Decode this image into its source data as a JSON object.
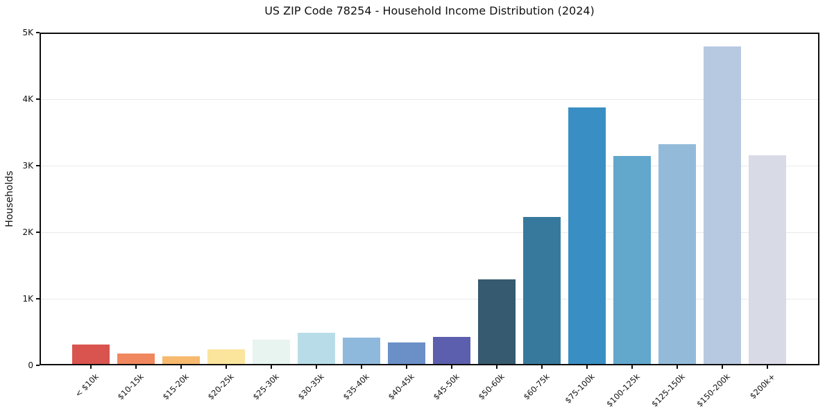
{
  "chart_data": {
    "type": "bar",
    "title": "US ZIP Code 78254 - Household Income Distribution (2024)",
    "xlabel": "",
    "ylabel": "Households",
    "ylim": [
      0,
      5000
    ],
    "grid": "horizontal",
    "legend": "none",
    "yticks": [
      {
        "value": 0,
        "label": "0"
      },
      {
        "value": 1000,
        "label": "1K"
      },
      {
        "value": 2000,
        "label": "2K"
      },
      {
        "value": 3000,
        "label": "3K"
      },
      {
        "value": 4000,
        "label": "4K"
      },
      {
        "value": 5000,
        "label": "5K"
      }
    ],
    "categories": [
      "< $10k",
      "$10-15k",
      "$15-20k",
      "$20-25k",
      "$25-30k",
      "$30-35k",
      "$35-40k",
      "$40-45k",
      "$45-50k",
      "$50-60k",
      "$60-75k",
      "$75-100k",
      "$100-125k",
      "$125-150k",
      "$150-200k",
      "$200k+"
    ],
    "values": [
      310,
      180,
      135,
      235,
      390,
      490,
      415,
      340,
      425,
      1290,
      2230,
      3880,
      3150,
      3320,
      4790,
      3160
    ],
    "bar_colors": [
      "#d9544f",
      "#f0875e",
      "#f7b96e",
      "#fbe49c",
      "#e7f4f0",
      "#b9dde8",
      "#8fb9dc",
      "#6b90c8",
      "#5c5fad",
      "#365a70",
      "#37799c",
      "#398fc4",
      "#62a7cc",
      "#93bbd9",
      "#b7c8e1",
      "#d8dae6"
    ],
    "colors": {
      "background": "#ffffff",
      "spine": "#0d0d0d",
      "gridline": "#e9e9e9",
      "text": "#111111"
    }
  }
}
